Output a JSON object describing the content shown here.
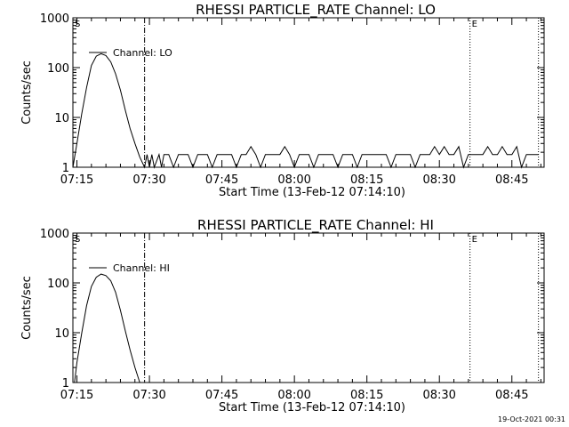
{
  "chart_data": [
    {
      "type": "line",
      "title": "RHESSI PARTICLE_RATE Channel: LO",
      "xlabel": "Start Time (13-Feb-12 07:14:10)",
      "ylabel": "Counts/sec",
      "yscale": "log",
      "ylim": [
        1,
        1000
      ],
      "xlim": [
        "07:14:10",
        "08:51:40"
      ],
      "x_ticks": [
        "07:15",
        "07:30",
        "07:45",
        "08:00",
        "08:15",
        "08:30",
        "08:45"
      ],
      "y_ticks": [
        "1",
        "10",
        "100",
        "1000"
      ],
      "legend": "Channel: LO",
      "legend_position": "top-left",
      "markers": [
        {
          "time": "07:14:10",
          "label": "S",
          "style": "dotted"
        },
        {
          "time": "07:29:00",
          "label": "",
          "style": "dash-dot"
        },
        {
          "time": "08:36:20",
          "label": "E",
          "style": "dotted"
        },
        {
          "time": "08:50:30",
          "label": "",
          "style": "dotted"
        }
      ],
      "series": [
        {
          "name": "Channel: LO",
          "x": [
            "07:14:10",
            "07:15:00",
            "07:16:00",
            "07:17:00",
            "07:18:00",
            "07:19:00",
            "07:20:00",
            "07:21:00",
            "07:22:00",
            "07:23:00",
            "07:24:00",
            "07:25:00",
            "07:26:00",
            "07:27:00",
            "07:28:00",
            "07:29:00",
            "07:29:30",
            "07:30:00",
            "07:30:30",
            "07:31:00",
            "07:32:00",
            "07:32:30",
            "07:33:00",
            "07:34:00",
            "07:35:00",
            "07:36:00",
            "07:37:00",
            "07:38:00",
            "07:39:00",
            "07:40:00",
            "07:41:00",
            "07:42:00",
            "07:43:00",
            "07:44:00",
            "07:45:00",
            "07:46:00",
            "07:47:00",
            "07:48:00",
            "07:49:00",
            "07:50:00",
            "07:51:00",
            "07:52:00",
            "07:53:00",
            "07:54:00",
            "07:55:00",
            "07:56:00",
            "07:57:00",
            "07:58:00",
            "07:59:00",
            "08:00:00",
            "08:01:00",
            "08:02:00",
            "08:03:00",
            "08:04:00",
            "08:05:00",
            "08:06:00",
            "08:07:00",
            "08:08:00",
            "08:09:00",
            "08:10:00",
            "08:11:00",
            "08:12:00",
            "08:13:00",
            "08:14:00",
            "08:15:00",
            "08:16:00",
            "08:17:00",
            "08:18:00",
            "08:19:00",
            "08:20:00",
            "08:21:00",
            "08:22:00",
            "08:23:00",
            "08:24:00",
            "08:25:00",
            "08:26:00",
            "08:27:00",
            "08:28:00",
            "08:29:00",
            "08:30:00",
            "08:31:00",
            "08:32:00",
            "08:33:00",
            "08:34:00",
            "08:35:00",
            "08:36:00",
            "08:37:00",
            "08:38:00",
            "08:39:00",
            "08:40:00",
            "08:41:00",
            "08:42:00",
            "08:43:00",
            "08:44:00",
            "08:45:00",
            "08:46:00",
            "08:47:00",
            "08:48:00",
            "08:49:00",
            "08:50:30"
          ],
          "y": [
            1,
            3,
            12,
            40,
            110,
            170,
            190,
            175,
            130,
            75,
            35,
            14,
            6,
            3,
            1.6,
            1,
            1.8,
            1,
            1.8,
            1,
            1.8,
            1,
            1.8,
            1.8,
            1,
            1.8,
            1.8,
            1.8,
            1,
            1.8,
            1.8,
            1.8,
            1,
            1.8,
            1.8,
            1.8,
            1.8,
            1,
            1.8,
            1.8,
            2.6,
            1.8,
            1,
            1.8,
            1.8,
            1.8,
            1.8,
            2.6,
            1.8,
            1,
            1.8,
            1.8,
            1.8,
            1,
            1.8,
            1.8,
            1.8,
            1.8,
            1,
            1.8,
            1.8,
            1.8,
            1,
            1.8,
            1.8,
            1.8,
            1.8,
            1.8,
            1.8,
            1,
            1.8,
            1.8,
            1.8,
            1.8,
            1,
            1.8,
            1.8,
            1.8,
            2.6,
            1.8,
            2.6,
            1.8,
            1.8,
            2.6,
            1,
            1.8,
            1.8,
            1.8,
            1.8,
            2.6,
            1.8,
            1.8,
            2.6,
            1.8,
            1.8,
            2.6,
            1,
            1.8,
            1.8,
            1.8
          ]
        }
      ]
    },
    {
      "type": "line",
      "title": "RHESSI PARTICLE_RATE Channel: HI",
      "xlabel": "Start Time (13-Feb-12 07:14:10)",
      "ylabel": "Counts/sec",
      "yscale": "log",
      "ylim": [
        1,
        1000
      ],
      "xlim": [
        "07:14:10",
        "08:51:40"
      ],
      "x_ticks": [
        "07:15",
        "07:30",
        "07:45",
        "08:00",
        "08:15",
        "08:30",
        "08:45"
      ],
      "y_ticks": [
        "1",
        "10",
        "100",
        "1000"
      ],
      "legend": "Channel: HI",
      "legend_position": "top-left",
      "markers": [
        {
          "time": "07:14:10",
          "label": "S",
          "style": "dotted"
        },
        {
          "time": "07:29:00",
          "label": "",
          "style": "dash-dot"
        },
        {
          "time": "08:36:20",
          "label": "E",
          "style": "dotted"
        },
        {
          "time": "08:50:30",
          "label": "",
          "style": "dotted"
        }
      ],
      "series": [
        {
          "name": "Channel: HI",
          "x": [
            "07:14:30",
            "07:15:00",
            "07:16:00",
            "07:17:00",
            "07:18:00",
            "07:19:00",
            "07:20:00",
            "07:21:00",
            "07:22:00",
            "07:23:00",
            "07:24:00",
            "07:25:00",
            "07:26:00",
            "07:27:00",
            "07:28:00"
          ],
          "y": [
            1,
            2.5,
            10,
            35,
            85,
            130,
            150,
            140,
            110,
            65,
            28,
            11,
            4.5,
            2,
            1
          ]
        }
      ]
    }
  ],
  "footer": {
    "date_stamp": "19-Oct-2021 00:31"
  }
}
